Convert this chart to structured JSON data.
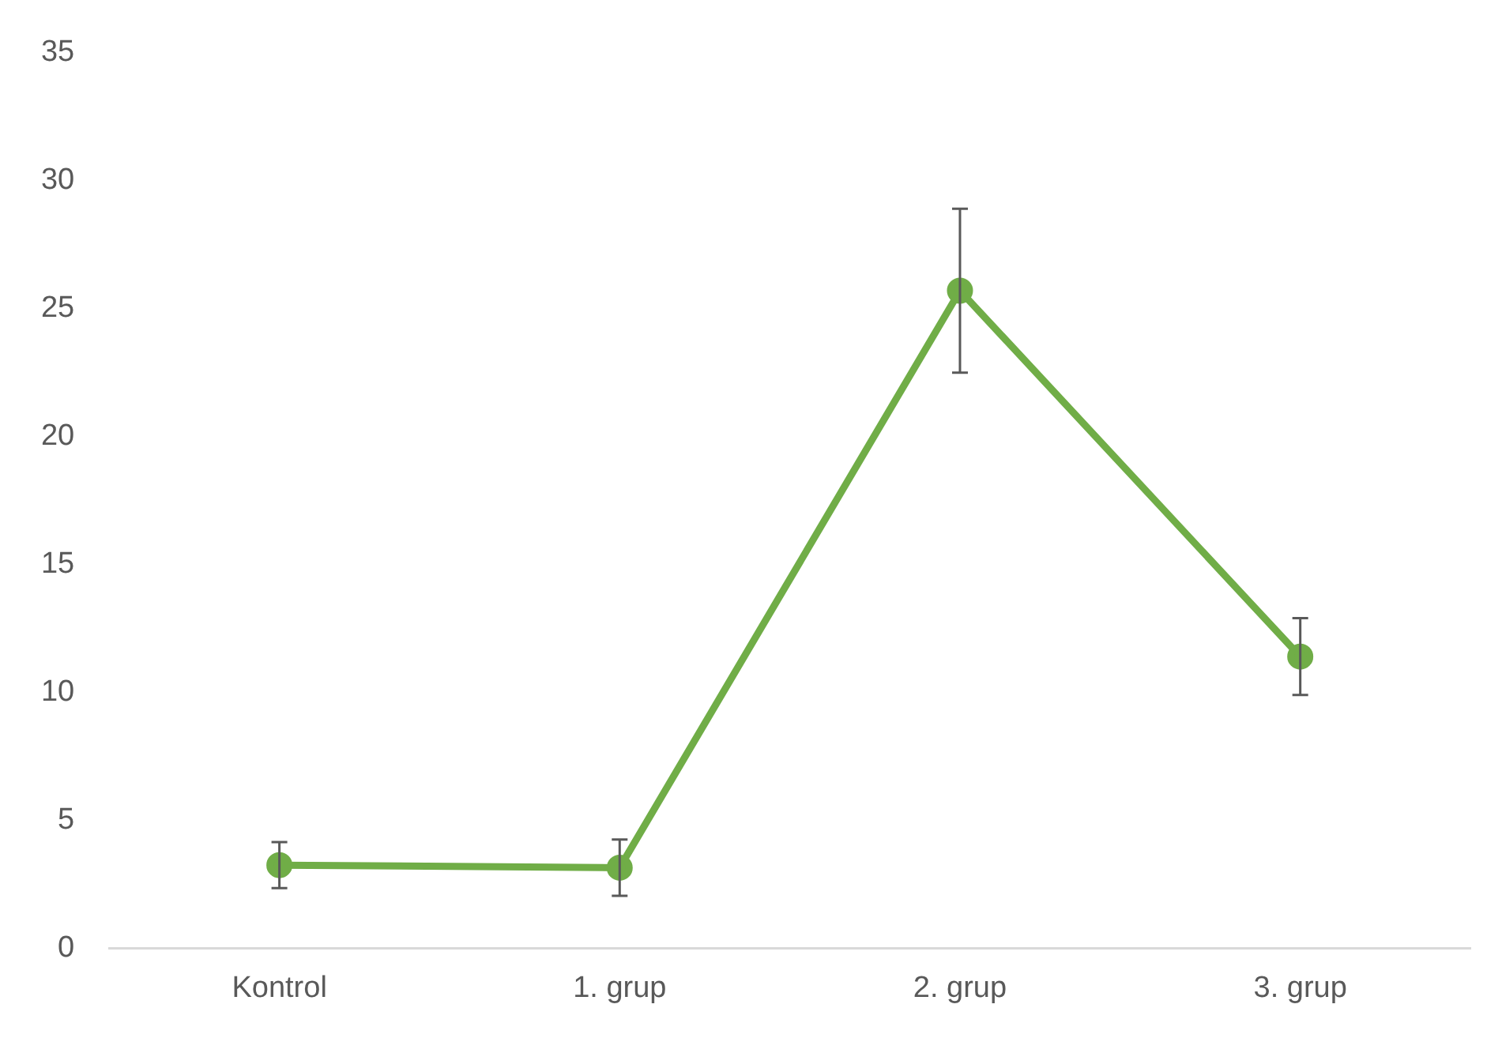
{
  "chart_data": {
    "type": "line",
    "categories": [
      "Kontrol",
      "1. grup",
      "2. grup",
      "3. grup"
    ],
    "series": [
      {
        "color": "#70ad47",
        "values": [
          3.25,
          3.15,
          25.7,
          11.4
        ],
        "errors": [
          0.9,
          1.1,
          3.2,
          1.5
        ]
      }
    ],
    "ylim": [
      0,
      35
    ],
    "yticks": [
      0,
      5,
      10,
      15,
      20,
      25,
      30,
      35
    ],
    "grid": false,
    "legend": false,
    "marker": "circle",
    "line_style": "solid"
  }
}
